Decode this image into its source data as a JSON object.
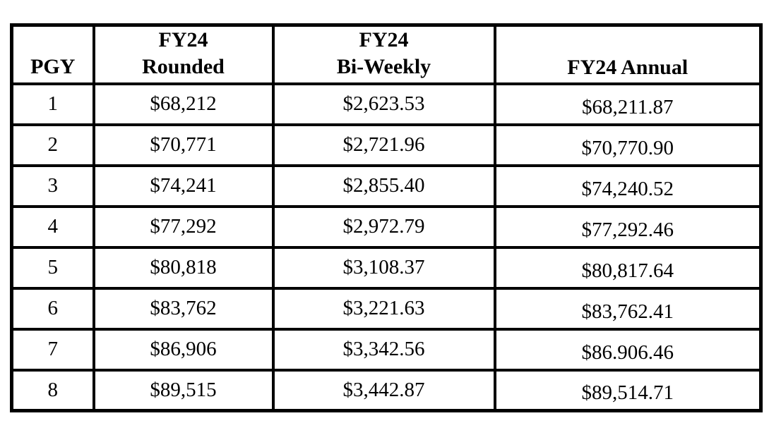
{
  "page": {
    "background_color": "#ffffff",
    "border_color": "#000000",
    "text_color": "#000000"
  },
  "table": {
    "headers": {
      "pgy": "PGY",
      "rounded_line1": "FY24",
      "rounded_line2": "Rounded",
      "biweekly_line1": "FY24",
      "biweekly_line2": "Bi-Weekly",
      "annual": "FY24 Annual"
    },
    "rows": [
      {
        "pgy": "1",
        "rounded": "$68,212",
        "biweekly": "$2,623.53",
        "annual": "$68,211.87"
      },
      {
        "pgy": "2",
        "rounded": "$70,771",
        "biweekly": "$2,721.96",
        "annual": "$70,770.90"
      },
      {
        "pgy": "3",
        "rounded": "$74,241",
        "biweekly": "$2,855.40",
        "annual": "$74,240.52"
      },
      {
        "pgy": "4",
        "rounded": "$77,292",
        "biweekly": "$2,972.79",
        "annual": "$77,292.46"
      },
      {
        "pgy": "5",
        "rounded": "$80,818",
        "biweekly": "$3,108.37",
        "annual": "$80,817.64"
      },
      {
        "pgy": "6",
        "rounded": "$83,762",
        "biweekly": "$3,221.63",
        "annual": "$83,762.41"
      },
      {
        "pgy": "7",
        "rounded": "$86,906",
        "biweekly": "$3,342.56",
        "annual": "$86.906.46"
      },
      {
        "pgy": "8",
        "rounded": "$89,515",
        "biweekly": "$3,442.87",
        "annual": "$89,514.71"
      }
    ]
  }
}
